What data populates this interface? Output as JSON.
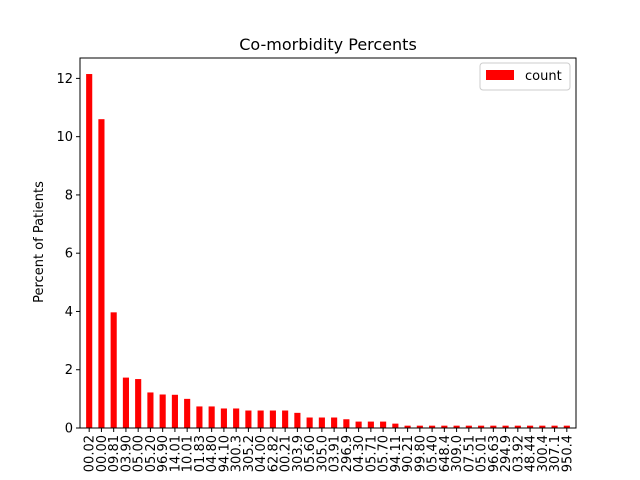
{
  "chart_data": {
    "type": "bar",
    "title": "Co-morbidity Percents",
    "xlabel": "",
    "ylabel": "Percent of Patients",
    "ylim": [
      0,
      12.7
    ],
    "yticks": [
      0,
      2,
      4,
      6,
      8,
      10,
      12
    ],
    "categories": [
      "00.02",
      "00.00",
      "09.81",
      "03.90",
      "05.00",
      "05.20",
      "96.90",
      "14.01",
      "10.01",
      "01.83",
      "04.80",
      "94.10",
      "300.3",
      "305.2",
      "04.00",
      "62.82",
      "00.21",
      "303.9",
      "05.60",
      "305.0",
      "03.91",
      "296.9",
      "04.30",
      "05.71",
      "05.70",
      "94.11",
      "90.21",
      "99.80",
      "05.40",
      "648.4",
      "309.0",
      "07.51",
      "05.01",
      "96.63",
      "294.9",
      "03.92",
      "48.44",
      "300.4",
      "307.1",
      "950.4"
    ],
    "series": [
      {
        "name": "count",
        "color": "#ff0000",
        "values": [
          12.15,
          10.6,
          3.97,
          1.73,
          1.68,
          1.22,
          1.15,
          1.14,
          1.0,
          0.74,
          0.74,
          0.67,
          0.67,
          0.6,
          0.6,
          0.6,
          0.6,
          0.52,
          0.36,
          0.36,
          0.36,
          0.3,
          0.22,
          0.22,
          0.22,
          0.15,
          0.08,
          0.08,
          0.08,
          0.08,
          0.08,
          0.08,
          0.08,
          0.08,
          0.08,
          0.08,
          0.08,
          0.08,
          0.08,
          0.08
        ]
      }
    ],
    "legend_position": "top-right",
    "grid": false
  }
}
